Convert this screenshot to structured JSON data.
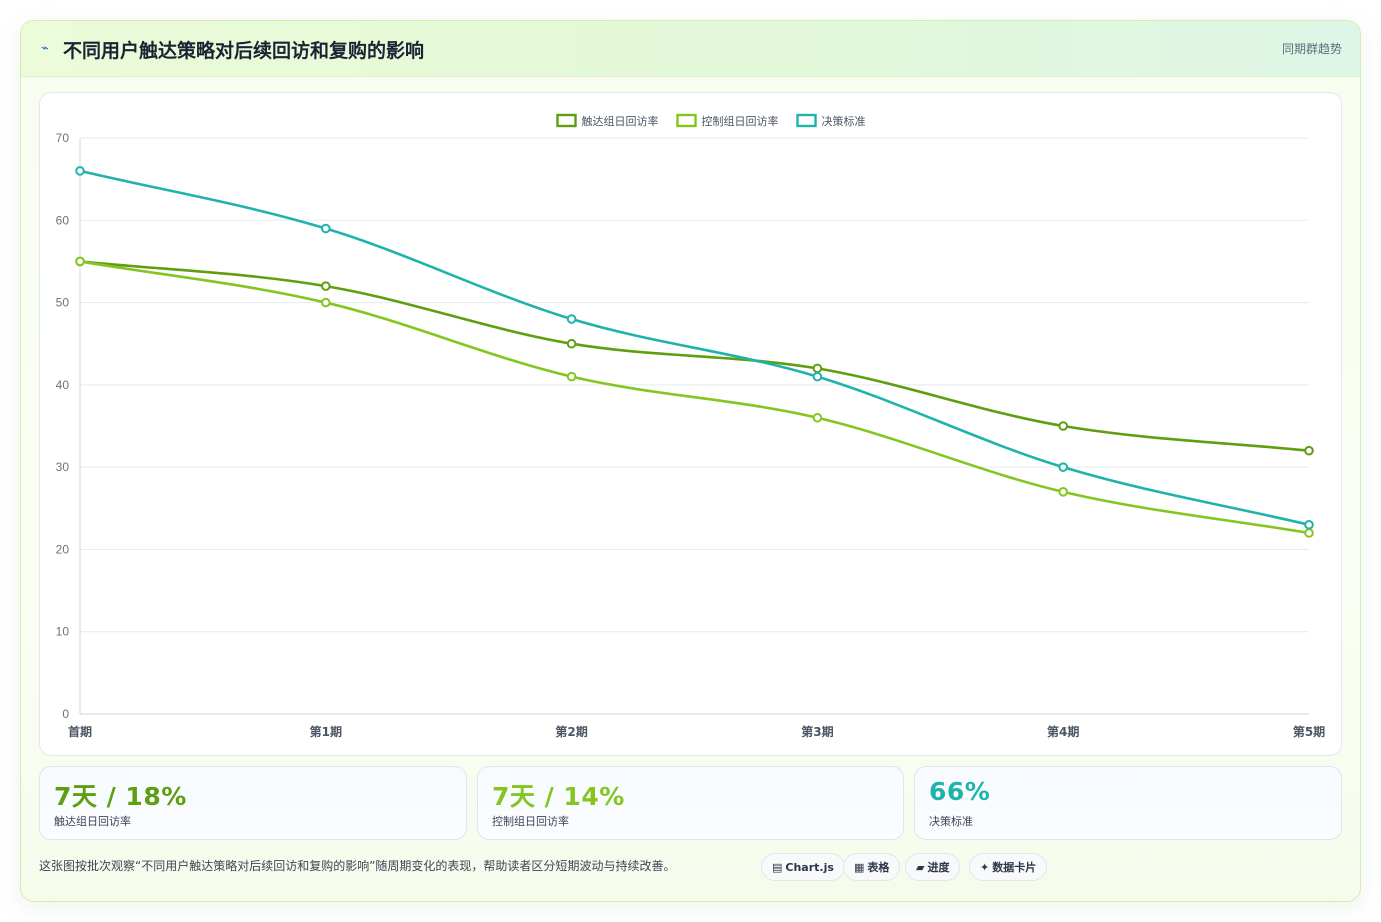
{
  "header": {
    "icon": "lightning-icon",
    "title": "不同用户触达策略对后续回访和复购的影响",
    "link": "同期群趋势"
  },
  "chart_data": {
    "type": "line",
    "categories": [
      "首期",
      "第1期",
      "第2期",
      "第3期",
      "第4期",
      "第5期"
    ],
    "ylim": [
      0,
      70
    ],
    "yticks": [
      0,
      10,
      20,
      30,
      40,
      50,
      60,
      70
    ],
    "grid": true,
    "legend_position": "top-center",
    "series": [
      {
        "name": "触达组日回访率",
        "color": "#5f9e10",
        "values": [
          55,
          52,
          45,
          42,
          35,
          32
        ]
      },
      {
        "name": "控制组日回访率",
        "color": "#84c520",
        "values": [
          55,
          50,
          41,
          36,
          27,
          22
        ]
      },
      {
        "name": "决策标准",
        "color": "#1fb3aa",
        "values": [
          66,
          59,
          48,
          41,
          30,
          23
        ]
      }
    ]
  },
  "kpis": [
    {
      "value": "7天 / 18%",
      "label": "触达组日回访率",
      "color": "#5f9e10"
    },
    {
      "value": "7天 / 14%",
      "label": "控制组日回访率",
      "color": "#84c520"
    },
    {
      "value": "66%",
      "label": "决策标准",
      "color": "#1fb3aa"
    }
  ],
  "footnote": "这张图按批次观察“不同用户触达策略对后续回访和复购的影响”随周期变化的表现，帮助读者区分短期波动与持续改善。",
  "pills": [
    {
      "icon": "chart-icon",
      "glyph": "▤",
      "label": "Chart.js"
    },
    {
      "icon": "table-icon",
      "glyph": "▦",
      "label": "表格"
    },
    {
      "icon": "progress-icon",
      "glyph": "▰",
      "label": "进度"
    },
    {
      "icon": "sparkle-icon",
      "glyph": "✦",
      "label": "数据卡片"
    }
  ]
}
